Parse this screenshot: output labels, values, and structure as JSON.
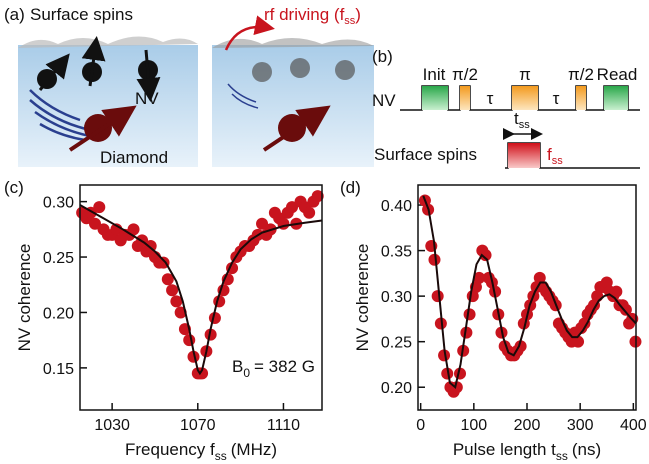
{
  "panel_a": {
    "label": "(a)",
    "surface_spins": "Surface spins",
    "rf_driving": "rf driving (f",
    "rf_sub": "ss",
    "rf_close": ")",
    "nv": "NV",
    "diamond": "Diamond"
  },
  "panel_b": {
    "label": "(b)",
    "pulses": [
      "Init",
      "π/2",
      "τ",
      "π",
      "τ",
      "π/2",
      "Read"
    ],
    "nv": "NV",
    "t": "t",
    "t_sub": "ss",
    "surface_spins": "Surface spins",
    "f": "f",
    "f_sub": "ss"
  },
  "chart_data": [
    {
      "type": "scatter",
      "panel_label": "(c)",
      "x_label": [
        "Frequency f",
        "ss",
        "(MHz)"
      ],
      "y_label": "NV coherence",
      "annotation": [
        "B",
        "0",
        "= 382 G"
      ],
      "xlim": [
        1015,
        1128
      ],
      "xticks": [
        1030,
        1070,
        1110
      ],
      "ylim": [
        0.112,
        0.315
      ],
      "yticks": [
        0.15,
        {
          "value": 0.2,
          "label": "0.20"
        },
        0.25,
        {
          "value": 0.3,
          "label": "0.30"
        }
      ],
      "series": [
        {
          "color": "#c8141e",
          "x": [
            1016,
            1018,
            1020,
            1022,
            1024,
            1026,
            1028,
            1030,
            1032,
            1034,
            1036,
            1038,
            1040,
            1042,
            1044,
            1046,
            1048,
            1050,
            1052,
            1054,
            1056,
            1058,
            1060,
            1062,
            1064,
            1066,
            1068,
            1070,
            1071,
            1072,
            1074,
            1076,
            1078,
            1080,
            1082,
            1084,
            1086,
            1088,
            1090,
            1092,
            1094,
            1096,
            1098,
            1100,
            1102,
            1104,
            1106,
            1108,
            1110,
            1112,
            1114,
            1116,
            1118,
            1120,
            1122,
            1124,
            1126
          ],
          "values": [
            0.29,
            0.285,
            0.29,
            0.28,
            0.295,
            0.275,
            0.27,
            0.27,
            0.275,
            0.265,
            0.27,
            0.27,
            0.275,
            0.26,
            0.265,
            0.255,
            0.26,
            0.25,
            0.245,
            0.245,
            0.23,
            0.22,
            0.21,
            0.2,
            0.185,
            0.175,
            0.16,
            0.145,
            0.145,
            0.145,
            0.165,
            0.18,
            0.195,
            0.21,
            0.22,
            0.23,
            0.24,
            0.25,
            0.255,
            0.26,
            0.26,
            0.265,
            0.27,
            0.28,
            0.27,
            0.275,
            0.29,
            0.285,
            0.28,
            0.29,
            0.295,
            0.28,
            0.3,
            0.295,
            0.29,
            0.3,
            0.305
          ]
        },
        {
          "color": "#1a0a0a",
          "style": "line",
          "x": [
            1015,
            1025,
            1035,
            1045,
            1050,
            1055,
            1060,
            1063,
            1066,
            1068,
            1070,
            1071,
            1072,
            1074,
            1076,
            1079,
            1082,
            1086,
            1090,
            1095,
            1100,
            1110,
            1120,
            1128
          ],
          "values": [
            0.297,
            0.286,
            0.275,
            0.263,
            0.255,
            0.245,
            0.228,
            0.21,
            0.185,
            0.165,
            0.148,
            0.145,
            0.148,
            0.165,
            0.185,
            0.21,
            0.228,
            0.245,
            0.257,
            0.266,
            0.272,
            0.278,
            0.281,
            0.283
          ]
        }
      ]
    },
    {
      "type": "scatter",
      "panel_label": "(d)",
      "x_label": [
        "Pulse length t",
        "ss",
        "(ns)"
      ],
      "y_label": "NV coherence",
      "xlim": [
        -5,
        405
      ],
      "xticks": [
        0,
        100,
        200,
        300,
        400
      ],
      "ylim": [
        0.175,
        0.422
      ],
      "yticks": [
        {
          "value": 0.2,
          "label": "0.20"
        },
        0.25,
        {
          "value": 0.3,
          "label": "0.30"
        },
        0.35,
        {
          "value": 0.4,
          "label": "0.40"
        }
      ],
      "series": [
        {
          "color": "#c8141e",
          "x": [
            8,
            14,
            20,
            26,
            32,
            38,
            44,
            50,
            56,
            62,
            68,
            74,
            80,
            86,
            92,
            98,
            104,
            110,
            116,
            122,
            128,
            134,
            140,
            146,
            152,
            158,
            164,
            170,
            176,
            182,
            188,
            194,
            200,
            206,
            212,
            218,
            224,
            230,
            236,
            242,
            248,
            254,
            260,
            266,
            272,
            278,
            284,
            290,
            296,
            302,
            308,
            314,
            320,
            326,
            332,
            338,
            344,
            350,
            356,
            362,
            368,
            374,
            380,
            386,
            392,
            398,
            404
          ],
          "values": [
            0.405,
            0.395,
            0.355,
            0.34,
            0.3,
            0.27,
            0.235,
            0.215,
            0.2,
            0.195,
            0.2,
            0.215,
            0.24,
            0.26,
            0.28,
            0.3,
            0.31,
            0.32,
            0.35,
            0.345,
            0.32,
            0.315,
            0.305,
            0.28,
            0.26,
            0.245,
            0.24,
            0.235,
            0.235,
            0.24,
            0.245,
            0.27,
            0.28,
            0.29,
            0.3,
            0.31,
            0.32,
            0.31,
            0.305,
            0.3,
            0.295,
            0.29,
            0.27,
            0.265,
            0.26,
            0.255,
            0.25,
            0.26,
            0.25,
            0.265,
            0.27,
            0.28,
            0.285,
            0.29,
            0.3,
            0.31,
            0.31,
            0.315,
            0.305,
            0.3,
            0.305,
            0.29,
            0.29,
            0.285,
            0.27,
            0.275,
            0.25
          ]
        },
        {
          "color": "#1a0a0a",
          "style": "line",
          "x": [
            5,
            15,
            25,
            35,
            45,
            55,
            65,
            75,
            85,
            95,
            105,
            115,
            125,
            135,
            145,
            155,
            165,
            175,
            185,
            195,
            205,
            215,
            225,
            235,
            245,
            255,
            265,
            275,
            285,
            295,
            305,
            315,
            325,
            335,
            345,
            355,
            365,
            375,
            385,
            395,
            405
          ],
          "values": [
            0.41,
            0.395,
            0.36,
            0.3,
            0.24,
            0.205,
            0.2,
            0.225,
            0.265,
            0.305,
            0.335,
            0.345,
            0.34,
            0.315,
            0.285,
            0.255,
            0.238,
            0.235,
            0.245,
            0.265,
            0.29,
            0.305,
            0.315,
            0.315,
            0.305,
            0.29,
            0.275,
            0.262,
            0.255,
            0.255,
            0.262,
            0.272,
            0.285,
            0.295,
            0.3,
            0.302,
            0.298,
            0.29,
            0.283,
            0.276,
            0.27
          ]
        }
      ]
    }
  ]
}
